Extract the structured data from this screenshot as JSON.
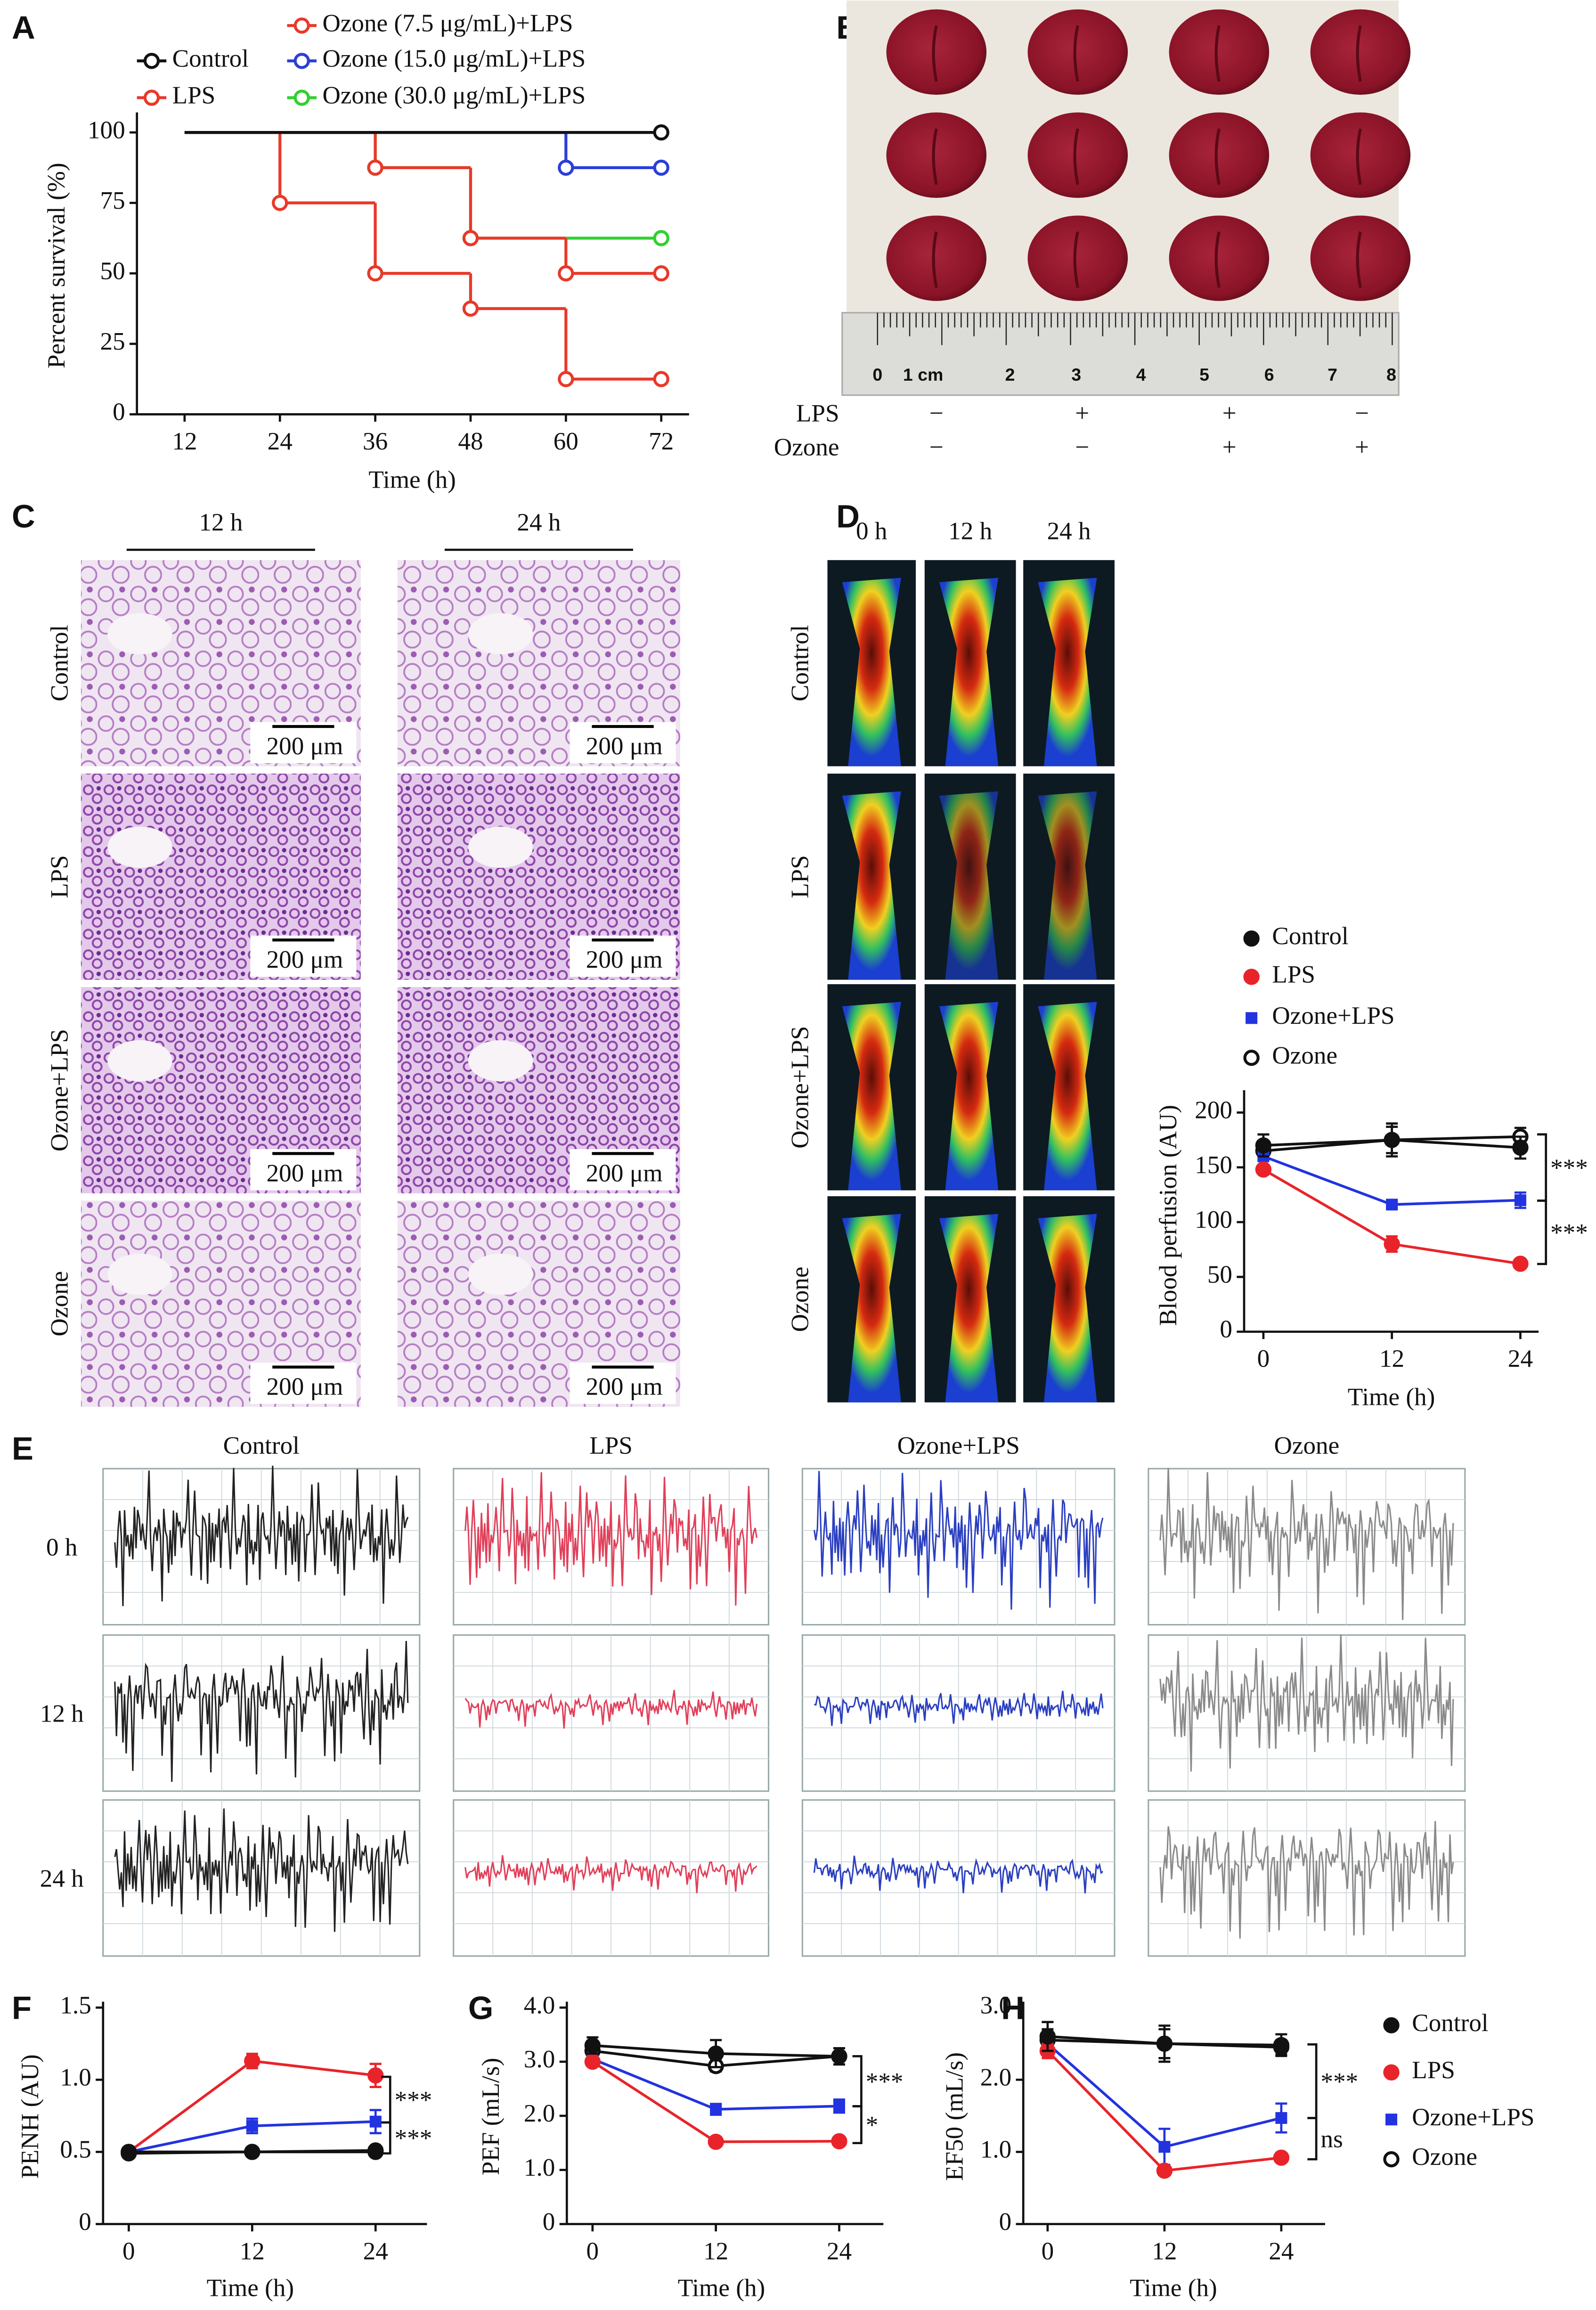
{
  "panel_labels": [
    "A",
    "B",
    "C",
    "D",
    "E",
    "F",
    "G",
    "H"
  ],
  "lungs": {
    "ruler_labels": [
      "0",
      "1 cm",
      "2",
      "3",
      "4",
      "5",
      "6",
      "7",
      "8"
    ],
    "rows": [
      {
        "label": "LPS",
        "marks": [
          "−",
          "+",
          "+",
          "−"
        ]
      },
      {
        "label": "Ozone",
        "marks": [
          "−",
          "−",
          "+",
          "+"
        ]
      }
    ]
  },
  "histology": {
    "columns": [
      "12 h",
      "24 h"
    ],
    "rows": [
      "Control",
      "LPS",
      "Ozone+LPS",
      "Ozone"
    ],
    "scale_bar": "200 μm"
  },
  "perfusion_images": {
    "columns": [
      "0 h",
      "12 h",
      "24 h"
    ],
    "rows": [
      "Control",
      "LPS",
      "Ozone+LPS",
      "Ozone"
    ]
  },
  "flow_traces": {
    "columns": [
      "Control",
      "LPS",
      "Ozone+LPS",
      "Ozone"
    ],
    "rows": [
      "0 h",
      "12 h",
      "24 h"
    ]
  },
  "chart_data": [
    {
      "type": "line",
      "step": true,
      "x_label": "Time (h)",
      "y_label": "Percent survival (%)",
      "x": [
        12,
        24,
        36,
        48,
        60,
        72
      ],
      "xlim": [
        6,
        75.5
      ],
      "xticks": [
        12,
        24,
        36,
        48,
        60,
        72
      ],
      "ylim": [
        0,
        105
      ],
      "yticks": [
        0,
        25,
        50,
        75,
        100
      ],
      "series": [
        {
          "name": "Control",
          "color": "#111111",
          "marker": "open-circle",
          "values": [
            100,
            100,
            100,
            100,
            100,
            100
          ]
        },
        {
          "name": "LPS",
          "color": "#e8392a",
          "marker": "open-circle",
          "values": [
            100,
            75,
            50,
            37.5,
            12.5,
            12.5
          ]
        },
        {
          "name": "Ozone (7.5 μg/mL)+LPS",
          "color": "#e8392a",
          "marker": "open-circle",
          "values": [
            100,
            100,
            87.5,
            62.5,
            50,
            50
          ]
        },
        {
          "name": "Ozone (15.0 μg/mL)+LPS",
          "color": "#2b3fd6",
          "marker": "open-circle",
          "values": [
            100,
            100,
            100,
            100,
            87.5,
            87.5
          ]
        },
        {
          "name": "Ozone (30.0 μg/mL)+LPS",
          "color": "#2fd12f",
          "marker": "open-circle",
          "values": [
            100,
            100,
            87.5,
            62.5,
            62.5,
            62.5
          ]
        }
      ]
    },
    {
      "type": "line",
      "x_label": "Time (h)",
      "y_label": "Blood perfusion (AU)",
      "x": [
        0,
        12,
        24
      ],
      "xlim": [
        -1.8,
        25.7
      ],
      "xticks": [
        0,
        12,
        24
      ],
      "ylim": [
        0,
        215
      ],
      "yticks": [
        0,
        50,
        100,
        150,
        200
      ],
      "annotations": [
        "***",
        "***"
      ],
      "series": [
        {
          "name": "Control",
          "color": "#111111",
          "marker": "circle",
          "values": [
            170,
            175,
            168
          ],
          "errors": [
            10,
            12,
            10
          ]
        },
        {
          "name": "LPS",
          "color": "#e8242a",
          "marker": "circle",
          "values": [
            148,
            80,
            62
          ],
          "errors": [
            4,
            7,
            4
          ]
        },
        {
          "name": "Ozone+LPS",
          "color": "#2233e0",
          "marker": "square",
          "values": [
            160,
            116,
            120
          ],
          "errors": [
            3,
            3,
            7
          ]
        },
        {
          "name": "Ozone",
          "color": "#111111",
          "marker": "open-circle",
          "values": [
            165,
            175,
            178
          ],
          "errors": [
            8,
            15,
            8
          ]
        }
      ]
    },
    {
      "type": "line",
      "x_label": "Time (h)",
      "y_label": "PENH (AU)",
      "x": [
        0,
        12,
        24
      ],
      "xlim": [
        -2.5,
        29
      ],
      "xticks": [
        0,
        12,
        24
      ],
      "ylim": [
        0,
        1.5
      ],
      "yticks": [
        0,
        0.5,
        {
          "value": 1,
          "label": "1.0"
        },
        1.5
      ],
      "annotations": [
        "***",
        "***"
      ],
      "series": [
        {
          "color": "#111111",
          "marker": "circle",
          "values": [
            0.5,
            0.5,
            0.51
          ],
          "errors": [
            0.02,
            0.02,
            0.02
          ]
        },
        {
          "color": "#e8242a",
          "marker": "circle",
          "values": [
            0.5,
            1.13,
            1.03
          ],
          "errors": [
            0.03,
            0.05,
            0.08
          ]
        },
        {
          "color": "#2233e0",
          "marker": "square",
          "values": [
            0.5,
            0.68,
            0.71
          ],
          "errors": [
            0.02,
            0.05,
            0.08
          ]
        },
        {
          "color": "#111111",
          "marker": "open-circle",
          "values": [
            0.49,
            0.5,
            0.5
          ],
          "errors": [
            0.02,
            0.02,
            0.02
          ]
        }
      ]
    },
    {
      "type": "line",
      "x_label": "Time (h)",
      "y_label": "PEF (mL/s)",
      "x": [
        0,
        12,
        24
      ],
      "xlim": [
        -2.5,
        28.3
      ],
      "xticks": [
        0,
        12,
        24
      ],
      "ylim": [
        0,
        4
      ],
      "yticks": [
        0,
        {
          "value": 1,
          "label": "1.0"
        },
        {
          "value": 2,
          "label": "2.0"
        },
        {
          "value": 3,
          "label": "3.0"
        },
        {
          "value": 4,
          "label": "4.0"
        }
      ],
      "annotations": [
        "***",
        "*"
      ],
      "series": [
        {
          "color": "#111111",
          "marker": "circle",
          "values": [
            3.3,
            3.15,
            3.1
          ],
          "errors": [
            0.15,
            0.25,
            0.15
          ]
        },
        {
          "color": "#e8242a",
          "marker": "circle",
          "values": [
            3.0,
            1.52,
            1.53
          ],
          "errors": [
            0.05,
            0.03,
            0.03
          ]
        },
        {
          "color": "#2233e0",
          "marker": "square",
          "values": [
            3.05,
            2.12,
            2.18
          ],
          "errors": [
            0.1,
            0.1,
            0.12
          ]
        },
        {
          "color": "#111111",
          "marker": "open-circle",
          "values": [
            3.2,
            2.92,
            3.1
          ],
          "errors": [
            0.1,
            0.1,
            0.15
          ]
        }
      ]
    },
    {
      "type": "line",
      "x_label": "Time (h)",
      "y_label": "EF50 (mL/s)",
      "x": [
        0,
        12,
        24
      ],
      "xlim": [
        -2.5,
        28.5
      ],
      "xticks": [
        0,
        12,
        24
      ],
      "ylim": [
        0,
        3
      ],
      "yticks": [
        0,
        {
          "value": 1,
          "label": "1.0"
        },
        {
          "value": 2,
          "label": "2.0"
        },
        {
          "value": 3,
          "label": "3.0"
        }
      ],
      "annotations": [
        "***",
        "ns"
      ],
      "series": [
        {
          "name": "Control",
          "color": "#111111",
          "marker": "circle",
          "values": [
            2.6,
            2.5,
            2.48
          ],
          "errors": [
            0.2,
            0.25,
            0.15
          ]
        },
        {
          "name": "LPS",
          "color": "#e8242a",
          "marker": "circle",
          "values": [
            2.4,
            0.74,
            0.92
          ],
          "errors": [
            0.1,
            0.03,
            0.06
          ]
        },
        {
          "name": "Ozone+LPS",
          "color": "#2233e0",
          "marker": "square",
          "values": [
            2.5,
            1.07,
            1.47
          ],
          "errors": [
            0.15,
            0.25,
            0.2
          ]
        },
        {
          "name": "Ozone",
          "color": "#111111",
          "marker": "open-circle",
          "values": [
            2.55,
            2.5,
            2.45
          ],
          "errors": [
            0.15,
            0.2,
            0.1
          ]
        }
      ]
    }
  ]
}
